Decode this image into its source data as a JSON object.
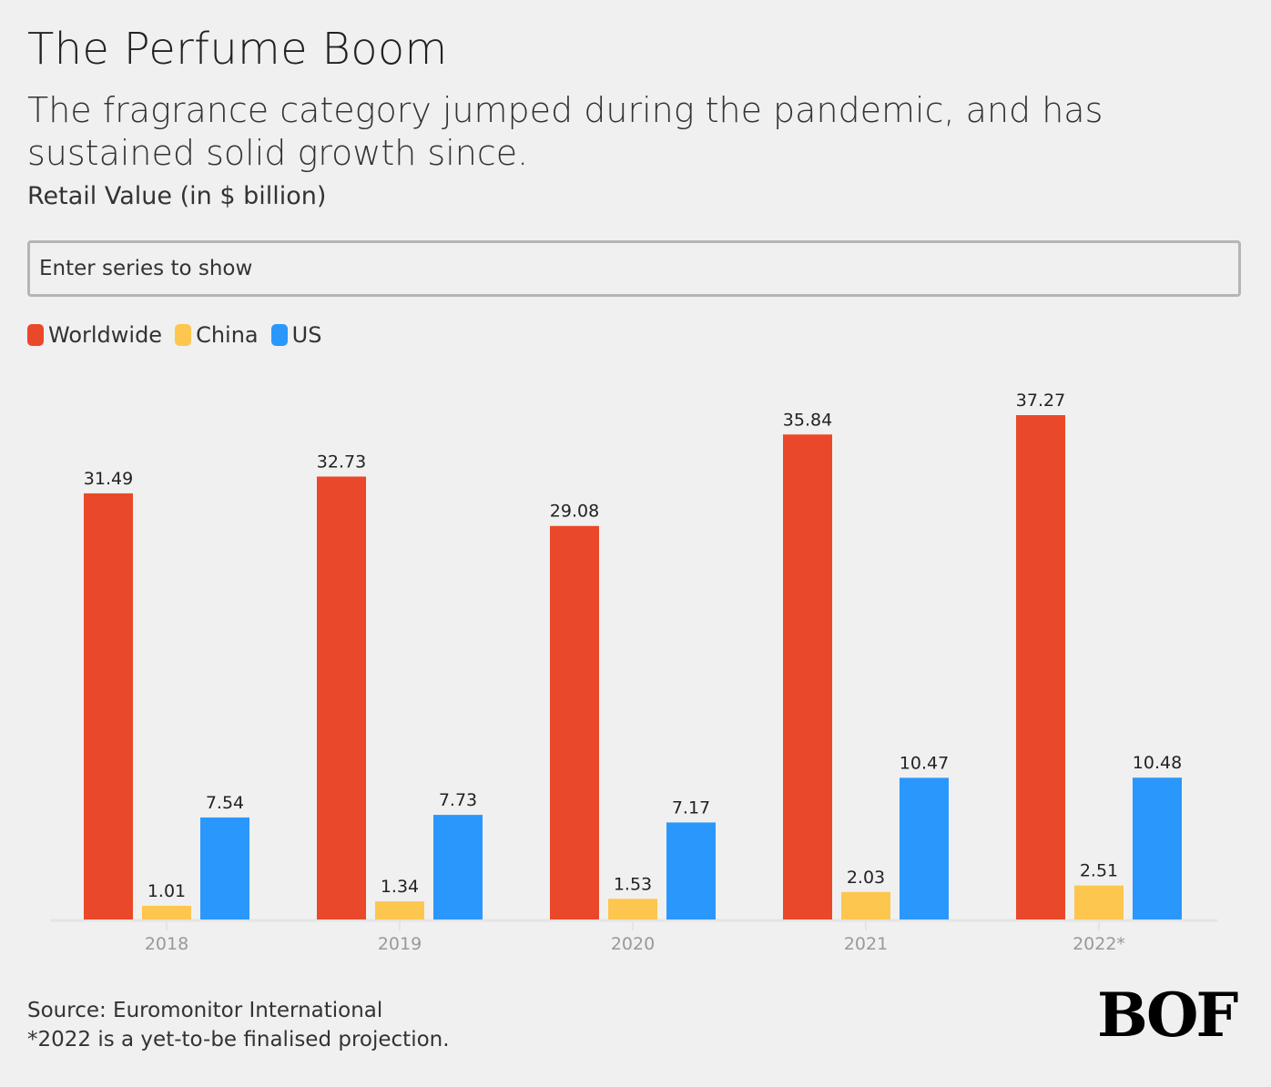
{
  "header": {
    "title": "The Perfume Boom",
    "subtitle": "The fragrance category jumped during the pandemic, and has sustained solid growth since.",
    "unit_label": "Retail Value (in $ billion)"
  },
  "search": {
    "placeholder": "Enter series to show",
    "value": ""
  },
  "legend": [
    {
      "label": "Worldwide",
      "color": "#e9492a"
    },
    {
      "label": "China",
      "color": "#fdc64e"
    },
    {
      "label": "US",
      "color": "#2a97fd"
    }
  ],
  "footer": {
    "source": "Source: Euromonitor International",
    "note": "*2022 is a yet-to-be finalised projection."
  },
  "logo": {
    "text": "BOF"
  },
  "chart_data": {
    "type": "bar",
    "title": "The Perfume Boom",
    "subtitle": "The fragrance category jumped during the pandemic, and has sustained solid growth since.",
    "xlabel": "",
    "ylabel": "Retail Value (in $ billion)",
    "categories": [
      "2018",
      "2019",
      "2020",
      "2021",
      "2022*"
    ],
    "series": [
      {
        "name": "Worldwide",
        "color": "#e9492a",
        "values": [
          31.49,
          32.73,
          29.08,
          35.84,
          37.27
        ]
      },
      {
        "name": "China",
        "color": "#fdc64e",
        "values": [
          1.01,
          1.34,
          1.53,
          2.03,
          2.51
        ]
      },
      {
        "name": "US",
        "color": "#2a97fd",
        "values": [
          7.54,
          7.73,
          7.17,
          10.47,
          10.48
        ]
      }
    ],
    "ylim": [
      0,
      37.27
    ],
    "grid": false,
    "legend_position": "top-left",
    "data_labels": true
  }
}
